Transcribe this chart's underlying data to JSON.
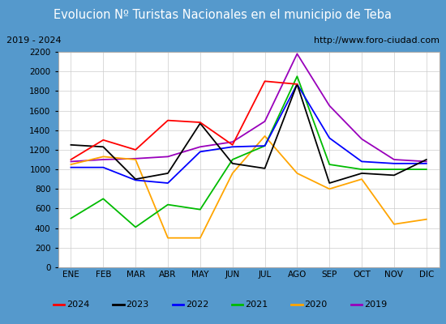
{
  "title": "Evolucion Nº Turistas Nacionales en el municipio de Teba",
  "subtitle_left": "2019 - 2024",
  "subtitle_right": "http://www.foro-ciudad.com",
  "months": [
    "ENE",
    "FEB",
    "MAR",
    "ABR",
    "MAY",
    "JUN",
    "JUL",
    "AGO",
    "SEP",
    "OCT",
    "NOV",
    "DIC"
  ],
  "series": {
    "2024": [
      1100,
      1300,
      1200,
      1500,
      1480,
      1250,
      1900,
      1870,
      null,
      null,
      null,
      null
    ],
    "2023": [
      1250,
      1230,
      900,
      960,
      1470,
      1060,
      1010,
      1870,
      860,
      960,
      940,
      1100
    ],
    "2022": [
      1020,
      1020,
      890,
      860,
      1180,
      1230,
      1240,
      1870,
      1320,
      1080,
      1060,
      1060
    ],
    "2021": [
      500,
      700,
      410,
      640,
      590,
      1100,
      1240,
      1950,
      1050,
      1000,
      1000,
      1000
    ],
    "2020": [
      1050,
      1130,
      1100,
      300,
      300,
      960,
      1340,
      960,
      800,
      900,
      440,
      490
    ],
    "2019": [
      1080,
      1100,
      1110,
      1130,
      1230,
      1280,
      1490,
      2180,
      1650,
      1310,
      1100,
      1080
    ]
  },
  "colors": {
    "2024": "#ff0000",
    "2023": "#000000",
    "2022": "#0000ff",
    "2021": "#00bb00",
    "2020": "#ffa500",
    "2019": "#9900bb"
  },
  "ylim": [
    0,
    2200
  ],
  "yticks": [
    0,
    200,
    400,
    600,
    800,
    1000,
    1200,
    1400,
    1600,
    1800,
    2000,
    2200
  ],
  "title_bg_color": "#5599cc",
  "title_font_color": "#ffffff",
  "plot_bg_color": "#f0f0f0",
  "inner_bg_color": "#ffffff",
  "border_color": "#5599cc",
  "subtitle_bg": "#e8e8e8",
  "grid_color": "#cccccc"
}
